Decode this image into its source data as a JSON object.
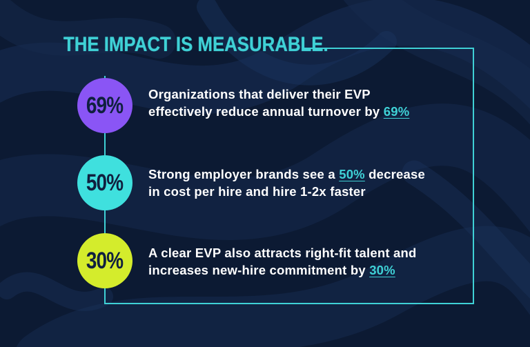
{
  "title": "THE IMPACT IS MEASURABLE.",
  "colors": {
    "background": "#0c1a33",
    "accent": "#3fd1d6",
    "purple": "#8a55f5",
    "teal": "#3fe0de",
    "lime": "#d4ec2c"
  },
  "stats": [
    {
      "badge": "69%",
      "line1": "Organizations that deliver their EVP",
      "line2_before": "effectively reduce annual turnover by ",
      "highlight": "69%",
      "line2_after": ""
    },
    {
      "badge": "50%",
      "line1_before": "Strong employer brands see a ",
      "highlight": "50%",
      "line1_after": " decrease",
      "line2": "in cost per hire and hire 1-2x faster"
    },
    {
      "badge": "30%",
      "line1": "A clear EVP also attracts right-fit talent and",
      "line2_before": "increases new-hire commitment by ",
      "highlight": "30%",
      "line2_after": ""
    }
  ]
}
